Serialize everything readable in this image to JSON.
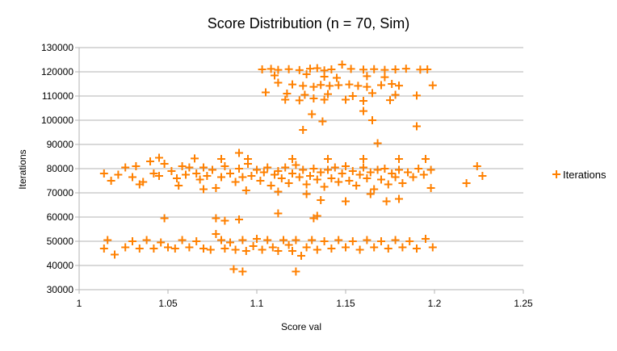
{
  "chart_data": {
    "type": "scatter",
    "title": "Score Distribution (n = 70, Sim)",
    "xlabel": "Score val",
    "ylabel": "Iterations",
    "xlim": [
      1,
      1.25
    ],
    "ylim": [
      30000,
      130000
    ],
    "xticks": [
      1,
      1.05,
      1.1,
      1.15,
      1.2,
      1.25
    ],
    "xtick_labels": [
      "1",
      "1.05",
      "1.1",
      "1.15",
      "1.2",
      "1.25"
    ],
    "yticks": [
      30000,
      40000,
      50000,
      60000,
      70000,
      80000,
      90000,
      100000,
      110000,
      120000,
      130000
    ],
    "ytick_labels": [
      "30000",
      "40000",
      "50000",
      "60000",
      "70000",
      "80000",
      "90000",
      "100000",
      "110000",
      "120000",
      "130000"
    ],
    "grid": true,
    "legend_position": "right",
    "marker": "plus",
    "color": "#ff8000",
    "series": [
      {
        "name": "Iterations",
        "points": [
          [
            1.103,
            121000
          ],
          [
            1.108,
            121200
          ],
          [
            1.112,
            120800
          ],
          [
            1.118,
            121100
          ],
          [
            1.124,
            120700
          ],
          [
            1.13,
            121300
          ],
          [
            1.134,
            121500
          ],
          [
            1.138,
            120600
          ],
          [
            1.142,
            121000
          ],
          [
            1.148,
            123000
          ],
          [
            1.153,
            121200
          ],
          [
            1.16,
            120900
          ],
          [
            1.166,
            121100
          ],
          [
            1.172,
            120800
          ],
          [
            1.178,
            121000
          ],
          [
            1.184,
            121300
          ],
          [
            1.192,
            120900
          ],
          [
            1.196,
            121000
          ],
          [
            1.11,
            118500
          ],
          [
            1.128,
            119000
          ],
          [
            1.138,
            118000
          ],
          [
            1.145,
            117500
          ],
          [
            1.162,
            118200
          ],
          [
            1.172,
            117800
          ],
          [
            1.112,
            115500
          ],
          [
            1.12,
            114800
          ],
          [
            1.126,
            114200
          ],
          [
            1.132,
            113800
          ],
          [
            1.136,
            114600
          ],
          [
            1.141,
            114200
          ],
          [
            1.146,
            114500
          ],
          [
            1.152,
            114800
          ],
          [
            1.157,
            114200
          ],
          [
            1.162,
            113800
          ],
          [
            1.17,
            114500
          ],
          [
            1.176,
            115000
          ],
          [
            1.18,
            114300
          ],
          [
            1.199,
            114400
          ],
          [
            1.105,
            111500
          ],
          [
            1.117,
            111000
          ],
          [
            1.127,
            110500
          ],
          [
            1.14,
            110800
          ],
          [
            1.154,
            110000
          ],
          [
            1.165,
            111200
          ],
          [
            1.178,
            110500
          ],
          [
            1.19,
            110200
          ],
          [
            1.116,
            108500
          ],
          [
            1.124,
            108200
          ],
          [
            1.132,
            109000
          ],
          [
            1.138,
            108500
          ],
          [
            1.15,
            108500
          ],
          [
            1.16,
            108000
          ],
          [
            1.175,
            108300
          ],
          [
            1.131,
            102500
          ],
          [
            1.16,
            103800
          ],
          [
            1.165,
            100000
          ],
          [
            1.137,
            99500
          ],
          [
            1.126,
            96000
          ],
          [
            1.19,
            97500
          ],
          [
            1.168,
            90500
          ],
          [
            1.09,
            86500
          ],
          [
            1.095,
            84000
          ],
          [
            1.12,
            84000
          ],
          [
            1.14,
            84000
          ],
          [
            1.16,
            84000
          ],
          [
            1.18,
            84000
          ],
          [
            1.195,
            84000
          ],
          [
            1.045,
            84500
          ],
          [
            1.065,
            84200
          ],
          [
            1.08,
            84000
          ],
          [
            1.014,
            78000
          ],
          [
            1.018,
            75000
          ],
          [
            1.022,
            77500
          ],
          [
            1.026,
            80500
          ],
          [
            1.03,
            76500
          ],
          [
            1.032,
            81000
          ],
          [
            1.036,
            74500
          ],
          [
            1.04,
            83000
          ],
          [
            1.042,
            78000
          ],
          [
            1.045,
            77000
          ],
          [
            1.048,
            82000
          ],
          [
            1.052,
            79000
          ],
          [
            1.055,
            76000
          ],
          [
            1.058,
            81000
          ],
          [
            1.06,
            77500
          ],
          [
            1.062,
            80500
          ],
          [
            1.066,
            78000
          ],
          [
            1.068,
            75500
          ],
          [
            1.07,
            80500
          ],
          [
            1.072,
            77000
          ],
          [
            1.075,
            79500
          ],
          [
            1.077,
            72000
          ],
          [
            1.08,
            76500
          ],
          [
            1.082,
            81000
          ],
          [
            1.085,
            78000
          ],
          [
            1.088,
            74500
          ],
          [
            1.09,
            80000
          ],
          [
            1.092,
            76500
          ],
          [
            1.095,
            82000
          ],
          [
            1.097,
            77000
          ],
          [
            1.1,
            79500
          ],
          [
            1.102,
            75000
          ],
          [
            1.104,
            78500
          ],
          [
            1.106,
            80500
          ],
          [
            1.108,
            73000
          ],
          [
            1.11,
            77500
          ],
          [
            1.112,
            79000
          ],
          [
            1.114,
            76000
          ],
          [
            1.116,
            80500
          ],
          [
            1.118,
            74000
          ],
          [
            1.12,
            78000
          ],
          [
            1.122,
            81500
          ],
          [
            1.124,
            76500
          ],
          [
            1.126,
            79500
          ],
          [
            1.128,
            73500
          ],
          [
            1.13,
            77000
          ],
          [
            1.132,
            80000
          ],
          [
            1.134,
            75500
          ],
          [
            1.136,
            78500
          ],
          [
            1.138,
            72500
          ],
          [
            1.14,
            79500
          ],
          [
            1.142,
            76000
          ],
          [
            1.144,
            80500
          ],
          [
            1.146,
            74500
          ],
          [
            1.148,
            78000
          ],
          [
            1.15,
            81000
          ],
          [
            1.152,
            75000
          ],
          [
            1.154,
            79000
          ],
          [
            1.156,
            73000
          ],
          [
            1.158,
            77500
          ],
          [
            1.16,
            80500
          ],
          [
            1.162,
            76000
          ],
          [
            1.164,
            78500
          ],
          [
            1.166,
            71500
          ],
          [
            1.168,
            79500
          ],
          [
            1.17,
            75500
          ],
          [
            1.172,
            80000
          ],
          [
            1.174,
            73500
          ],
          [
            1.176,
            78000
          ],
          [
            1.178,
            76500
          ],
          [
            1.18,
            79500
          ],
          [
            1.182,
            74000
          ],
          [
            1.185,
            78500
          ],
          [
            1.188,
            76500
          ],
          [
            1.191,
            80000
          ],
          [
            1.194,
            77500
          ],
          [
            1.198,
            79500
          ],
          [
            1.218,
            74000
          ],
          [
            1.224,
            81000
          ],
          [
            1.227,
            77000
          ],
          [
            1.198,
            72000
          ],
          [
            1.034,
            73500
          ],
          [
            1.056,
            73000
          ],
          [
            1.07,
            71500
          ],
          [
            1.094,
            71000
          ],
          [
            1.112,
            70500
          ],
          [
            1.128,
            69500
          ],
          [
            1.136,
            67000
          ],
          [
            1.15,
            66500
          ],
          [
            1.164,
            69500
          ],
          [
            1.173,
            66500
          ],
          [
            1.18,
            67500
          ],
          [
            1.048,
            59500
          ],
          [
            1.077,
            59500
          ],
          [
            1.082,
            58500
          ],
          [
            1.09,
            59000
          ],
          [
            1.112,
            61500
          ],
          [
            1.132,
            59500
          ],
          [
            1.134,
            60500
          ],
          [
            1.014,
            47000
          ],
          [
            1.016,
            50500
          ],
          [
            1.02,
            44500
          ],
          [
            1.026,
            47500
          ],
          [
            1.03,
            50000
          ],
          [
            1.034,
            47000
          ],
          [
            1.038,
            50500
          ],
          [
            1.042,
            47000
          ],
          [
            1.046,
            49500
          ],
          [
            1.05,
            47500
          ],
          [
            1.054,
            47000
          ],
          [
            1.058,
            50500
          ],
          [
            1.062,
            47500
          ],
          [
            1.066,
            50000
          ],
          [
            1.07,
            47000
          ],
          [
            1.074,
            46500
          ],
          [
            1.077,
            53000
          ],
          [
            1.08,
            50500
          ],
          [
            1.082,
            47000
          ],
          [
            1.085,
            49500
          ],
          [
            1.088,
            46500
          ],
          [
            1.092,
            50500
          ],
          [
            1.094,
            46000
          ],
          [
            1.098,
            48000
          ],
          [
            1.1,
            51000
          ],
          [
            1.103,
            46500
          ],
          [
            1.106,
            50500
          ],
          [
            1.109,
            47500
          ],
          [
            1.112,
            46000
          ],
          [
            1.115,
            50500
          ],
          [
            1.118,
            48500
          ],
          [
            1.12,
            46000
          ],
          [
            1.122,
            50500
          ],
          [
            1.125,
            44000
          ],
          [
            1.128,
            47500
          ],
          [
            1.131,
            50500
          ],
          [
            1.134,
            46500
          ],
          [
            1.138,
            50000
          ],
          [
            1.142,
            47000
          ],
          [
            1.146,
            50500
          ],
          [
            1.15,
            47500
          ],
          [
            1.154,
            50000
          ],
          [
            1.158,
            46500
          ],
          [
            1.162,
            50500
          ],
          [
            1.166,
            47500
          ],
          [
            1.17,
            50000
          ],
          [
            1.174,
            47000
          ],
          [
            1.178,
            50500
          ],
          [
            1.182,
            47500
          ],
          [
            1.186,
            50000
          ],
          [
            1.19,
            47000
          ],
          [
            1.195,
            51000
          ],
          [
            1.199,
            47500
          ],
          [
            1.122,
            37500
          ],
          [
            1.087,
            38500
          ],
          [
            1.092,
            37500
          ]
        ]
      }
    ]
  }
}
